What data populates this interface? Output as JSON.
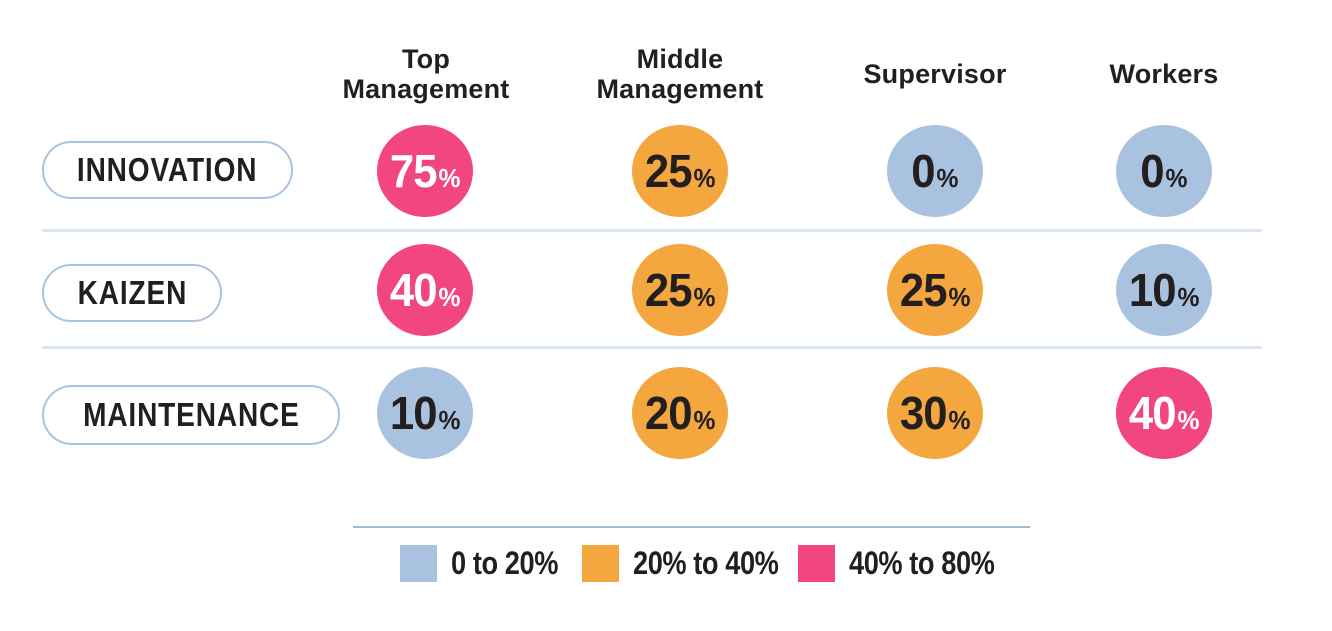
{
  "matrix": {
    "columns": [
      {
        "id": "top-management",
        "label": "Top\nManagement"
      },
      {
        "id": "middle-management",
        "label": "Middle\nManagement"
      },
      {
        "id": "supervisor",
        "label": "Supervisor"
      },
      {
        "id": "workers",
        "label": "Workers"
      }
    ],
    "rows": [
      {
        "id": "innovation",
        "label": "INNOVATION",
        "cells": [
          {
            "value": "75",
            "unit": "%",
            "range": "high"
          },
          {
            "value": "25",
            "unit": "%",
            "range": "mid"
          },
          {
            "value": "0",
            "unit": "%",
            "range": "low"
          },
          {
            "value": "0",
            "unit": "%",
            "range": "low"
          }
        ]
      },
      {
        "id": "kaizen",
        "label": "KAIZEN",
        "cells": [
          {
            "value": "40",
            "unit": "%",
            "range": "high"
          },
          {
            "value": "25",
            "unit": "%",
            "range": "mid"
          },
          {
            "value": "25",
            "unit": "%",
            "range": "mid"
          },
          {
            "value": "10",
            "unit": "%",
            "range": "low"
          }
        ]
      },
      {
        "id": "maintenance",
        "label": "MAINTENANCE",
        "cells": [
          {
            "value": "10",
            "unit": "%",
            "range": "low"
          },
          {
            "value": "20",
            "unit": "%",
            "range": "mid"
          },
          {
            "value": "30",
            "unit": "%",
            "range": "mid"
          },
          {
            "value": "40",
            "unit": "%",
            "range": "high"
          }
        ]
      }
    ]
  },
  "legend": {
    "items": [
      {
        "label": "0 to 20%",
        "range": "low"
      },
      {
        "label": "20% to 40%",
        "range": "mid"
      },
      {
        "label": "40% to 80%",
        "range": "high"
      }
    ]
  },
  "colors": {
    "low": "#A9C2DF",
    "mid": "#F4A73E",
    "high": "#F1477E",
    "dark_text": "#231F20",
    "light_text": "#FFFFFF",
    "divider": "#D9E6F1",
    "legend_line": "#9FBBD8",
    "pill_border": "#A9C4E2",
    "background": "#FFFFFF"
  },
  "chart_data": {
    "type": "heatmap",
    "title": "",
    "x_categories": [
      "Top Management",
      "Middle Management",
      "Supervisor",
      "Workers"
    ],
    "y_categories": [
      "INNOVATION",
      "KAIZEN",
      "MAINTENANCE"
    ],
    "values_percent": [
      [
        75,
        25,
        0,
        0
      ],
      [
        40,
        25,
        25,
        10
      ],
      [
        10,
        20,
        30,
        40
      ]
    ],
    "unit": "%",
    "legend_position": "bottom",
    "bins": [
      {
        "label": "0 to 20%",
        "color": "#A9C2DF"
      },
      {
        "label": "20% to 40%",
        "color": "#F4A73E"
      },
      {
        "label": "40% to 80%",
        "color": "#F1477E"
      }
    ]
  }
}
